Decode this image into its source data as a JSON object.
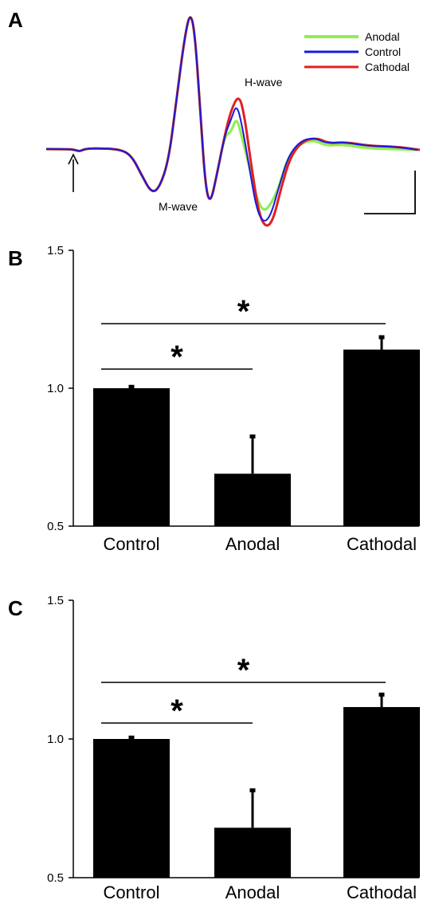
{
  "panels": {
    "a": {
      "label": "A"
    },
    "b": {
      "label": "B"
    },
    "c": {
      "label": "C"
    }
  },
  "trace": {
    "legend": [
      {
        "name": "Anodal",
        "color": "#90ee50"
      },
      {
        "name": "Control",
        "color": "#1a1adc"
      },
      {
        "name": "Cathodal",
        "color": "#e02020"
      }
    ],
    "annotations": {
      "m_wave": "M-wave",
      "h_wave": "H-wave"
    },
    "stimulus_marker": "arrow-up-icon",
    "scale_bar": "L-shaped scale bar"
  },
  "significance_marker": "*",
  "chart_data": [
    {
      "panel": "B",
      "type": "bar",
      "categories": [
        "Control",
        "Anodal",
        "Cathodal"
      ],
      "values": [
        1.0,
        0.69,
        1.14
      ],
      "errors": [
        0.005,
        0.135,
        0.045
      ],
      "ylim": [
        0.5,
        1.5
      ],
      "yticks": [
        "0.5",
        "1.0",
        "1.5"
      ],
      "bar_color": "#000000",
      "significance": [
        {
          "from": "Control",
          "to": "Anodal",
          "label": "*"
        },
        {
          "from": "Control",
          "to": "Cathodal",
          "label": "*"
        }
      ]
    },
    {
      "panel": "C",
      "type": "bar",
      "categories": [
        "Control",
        "Anodal",
        "Cathodal"
      ],
      "values": [
        1.0,
        0.68,
        1.115
      ],
      "errors": [
        0.005,
        0.135,
        0.045
      ],
      "ylim": [
        0.5,
        1.5
      ],
      "yticks": [
        "0.5",
        "1.0",
        "1.5"
      ],
      "bar_color": "#000000",
      "significance": [
        {
          "from": "Control",
          "to": "Anodal",
          "label": "*"
        },
        {
          "from": "Control",
          "to": "Cathodal",
          "label": "*"
        }
      ]
    }
  ]
}
